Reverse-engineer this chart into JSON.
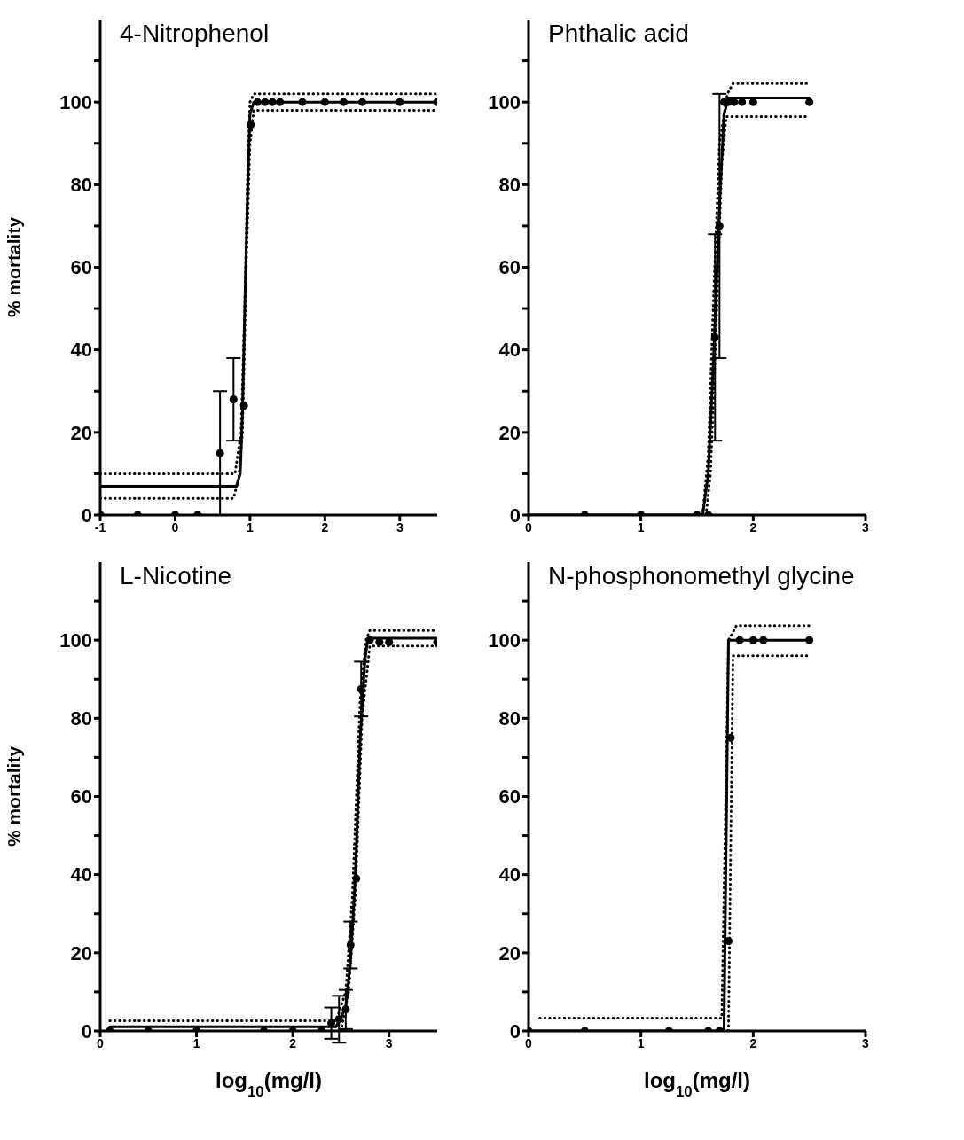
{
  "chart_data": [
    {
      "type": "scatter",
      "title": "4-Nitrophenol",
      "ylabel": "% mortality",
      "xlim": [
        -1,
        3.5
      ],
      "xticks": [
        -1,
        0,
        1,
        2,
        3
      ],
      "ylim": [
        0,
        120
      ],
      "yticks": [
        0,
        {
          "value": 10,
          "label": null
        },
        20,
        {
          "value": 30,
          "label": null
        },
        40,
        {
          "value": 50,
          "label": null
        },
        60,
        {
          "value": 70,
          "label": null
        },
        80,
        {
          "value": 90,
          "label": null
        },
        100,
        {
          "value": 110,
          "label": null
        }
      ],
      "series": [
        {
          "type": "line",
          "color": "#000000",
          "line_style": "dotted",
          "marker": "none",
          "x": [
            -1,
            0.8,
            0.88,
            0.93,
            0.97,
            1.0,
            1.05,
            3.5
          ],
          "values": [
            10,
            10,
            20,
            50,
            85,
            100,
            102,
            102
          ]
        },
        {
          "type": "line",
          "color": "#000000",
          "line_style": "dotted",
          "marker": "none",
          "x": [
            -1,
            0.78,
            0.85,
            0.9,
            0.95,
            1.0,
            1.05,
            3.5
          ],
          "values": [
            4,
            4,
            9,
            20,
            60,
            90,
            98,
            98
          ]
        },
        {
          "type": "line",
          "color": "#000000",
          "line_style": "solid",
          "marker": "none",
          "x": [
            -1,
            0.82,
            0.87,
            0.9,
            0.93,
            0.97,
            1.0,
            1.05,
            3.5
          ],
          "values": [
            7,
            7,
            10,
            25,
            50,
            80,
            97,
            100,
            100
          ]
        },
        {
          "type": "scatter",
          "color": "#000000",
          "marker": "circle",
          "x": [
            -1,
            -0.5,
            0,
            0.3,
            0.6,
            0.78,
            0.92,
            1.01,
            1.1,
            1.2,
            1.3,
            1.4,
            1.7,
            2.0,
            2.25,
            2.5,
            3.0,
            3.5
          ],
          "values": [
            0,
            0,
            0,
            0,
            15,
            28,
            26.5,
            94.5,
            100,
            100,
            100,
            100,
            100,
            100,
            100,
            100,
            100,
            100
          ],
          "errors": [
            null,
            null,
            null,
            null,
            15,
            10,
            null,
            null,
            null,
            null,
            null,
            null,
            null,
            null,
            null,
            null,
            null,
            null
          ]
        }
      ]
    },
    {
      "type": "scatter",
      "title": "Phthalic acid",
      "xlim": [
        0,
        3
      ],
      "xticks": [
        0,
        1,
        2,
        3
      ],
      "ylim": [
        0,
        120
      ],
      "yticks": [
        0,
        {
          "value": 10,
          "label": null
        },
        20,
        {
          "value": 30,
          "label": null
        },
        40,
        {
          "value": 50,
          "label": null
        },
        60,
        {
          "value": 70,
          "label": null
        },
        80,
        {
          "value": 90,
          "label": null
        },
        100,
        {
          "value": 110,
          "label": null
        }
      ],
      "series": [
        {
          "type": "line",
          "color": "#000000",
          "line_style": "dotted",
          "marker": "none",
          "x": [
            1.55,
            1.6,
            1.65,
            1.7,
            1.77,
            1.82,
            2.5
          ],
          "values": [
            0,
            15,
            55,
            90,
            102,
            104.5,
            104.5
          ]
        },
        {
          "type": "line",
          "color": "#000000",
          "line_style": "dotted",
          "marker": "none",
          "x": [
            1.58,
            1.62,
            1.67,
            1.72,
            1.76,
            2.5
          ],
          "values": [
            0,
            10,
            45,
            85,
            96.5,
            96.5
          ]
        },
        {
          "type": "line",
          "color": "#000000",
          "line_style": "solid",
          "marker": "none",
          "x": [
            0,
            1.55,
            1.6,
            1.65,
            1.7,
            1.74,
            1.78,
            2.5
          ],
          "values": [
            0,
            0,
            10,
            40,
            75,
            97,
            101,
            101
          ]
        },
        {
          "type": "scatter",
          "color": "#000000",
          "marker": "circle",
          "x": [
            0.5,
            1,
            1.5,
            1.6,
            1.66,
            1.7,
            1.74,
            1.78,
            1.83,
            1.9,
            2.0,
            2.5
          ],
          "values": [
            0,
            0,
            0,
            0,
            43,
            70,
            100,
            100,
            100,
            100,
            100,
            100
          ],
          "errors": [
            null,
            null,
            null,
            null,
            25,
            32,
            null,
            null,
            null,
            null,
            null,
            null
          ]
        }
      ]
    },
    {
      "type": "scatter",
      "title": "L-Nicotine",
      "xlabel": "log$_{10}$(mg/l)",
      "ylabel": "% mortality",
      "xlim": [
        0,
        3.5
      ],
      "xticks": [
        0,
        1,
        2,
        3
      ],
      "ylim": [
        0,
        120
      ],
      "yticks": [
        0,
        {
          "value": 10,
          "label": null
        },
        20,
        {
          "value": 30,
          "label": null
        },
        40,
        {
          "value": 50,
          "label": null
        },
        60,
        {
          "value": 70,
          "label": null
        },
        80,
        {
          "value": 90,
          "label": null
        },
        100,
        {
          "value": 110,
          "label": null
        }
      ],
      "series": [
        {
          "type": "line",
          "color": "#000000",
          "line_style": "dotted",
          "marker": "none",
          "x": [
            0.1,
            2.45,
            2.55,
            2.62,
            2.7,
            2.76,
            2.8,
            3.5
          ],
          "values": [
            2.6,
            2.6,
            10,
            35,
            85,
            100,
            102.5,
            102.5
          ]
        },
        {
          "type": "line",
          "color": "#000000",
          "line_style": "dotted",
          "marker": "none",
          "x": [
            2.5,
            2.58,
            2.65,
            2.72,
            2.8,
            3.5
          ],
          "values": [
            0,
            10,
            35,
            80,
            98.5,
            98.5
          ]
        },
        {
          "type": "line",
          "color": "#000000",
          "line_style": "solid",
          "marker": "none",
          "x": [
            0.1,
            2.45,
            2.55,
            2.6,
            2.65,
            2.7,
            2.75,
            2.78,
            3.5
          ],
          "values": [
            1.1,
            1.1,
            6,
            18,
            40,
            75,
            95,
            100.5,
            100.5
          ]
        },
        {
          "type": "scatter",
          "color": "#000000",
          "marker": "circle",
          "x": [
            0.1,
            0.5,
            1,
            1.7,
            2,
            2.3,
            2.4,
            2.48,
            2.55,
            2.6,
            2.66,
            2.71,
            2.8,
            2.9,
            3.0,
            3.5
          ],
          "values": [
            0,
            0,
            0,
            0,
            0,
            0,
            2,
            3,
            5.5,
            22,
            39,
            87.5,
            100,
            99.5,
            99.5,
            99.5
          ],
          "errors": [
            null,
            null,
            null,
            null,
            null,
            null,
            4,
            6,
            5,
            6,
            null,
            7,
            null,
            null,
            null,
            null
          ]
        }
      ]
    },
    {
      "type": "scatter",
      "title": "N-phosphonomethyl glycine",
      "xlabel": "log$_{10}$(mg/l)",
      "xlim": [
        0,
        3
      ],
      "xticks": [
        0,
        1,
        2,
        3
      ],
      "ylim": [
        0,
        120
      ],
      "yticks": [
        0,
        {
          "value": 10,
          "label": null
        },
        20,
        {
          "value": 30,
          "label": null
        },
        40,
        {
          "value": 50,
          "label": null
        },
        60,
        {
          "value": 70,
          "label": null
        },
        80,
        {
          "value": 90,
          "label": null
        },
        100,
        {
          "value": 110,
          "label": null
        }
      ],
      "series": [
        {
          "type": "line",
          "color": "#000000",
          "line_style": "dotted",
          "marker": "none",
          "x": [
            0.1,
            1.72,
            1.78,
            1.8,
            1.85,
            2.5
          ],
          "values": [
            3.3,
            3.3,
            100,
            101,
            103.7,
            103.7
          ]
        },
        {
          "type": "line",
          "color": "#000000",
          "line_style": "dotted",
          "marker": "none",
          "x": [
            1.78,
            1.82,
            2.5
          ],
          "values": [
            0,
            96,
            96
          ]
        },
        {
          "type": "line",
          "color": "#000000",
          "line_style": "solid",
          "marker": "none",
          "x": [
            0,
            1.74,
            1.78,
            2.5
          ],
          "values": [
            0,
            0,
            100,
            100
          ]
        },
        {
          "type": "scatter",
          "color": "#000000",
          "marker": "circle",
          "x": [
            0,
            0.5,
            1.25,
            1.6,
            1.7,
            1.78,
            1.8,
            1.88,
            2.0,
            2.09,
            2.5
          ],
          "values": [
            0,
            0,
            0,
            0,
            0,
            23,
            75,
            100,
            100,
            100,
            100
          ]
        }
      ]
    }
  ]
}
